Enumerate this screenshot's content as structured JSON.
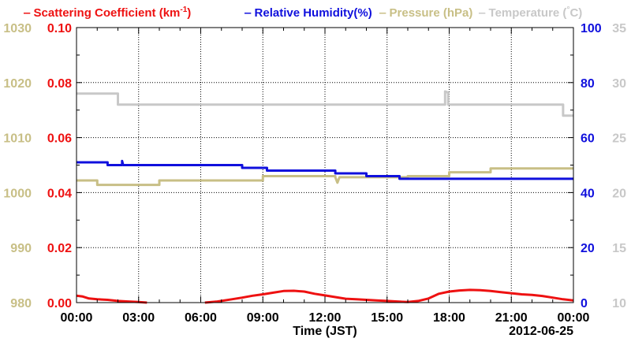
{
  "chart_data": {
    "type": "line",
    "legend": {
      "placement": "top",
      "entries": [
        {
          "text": "Scattering Coefficient (km",
          "sup": "-1",
          "after": ")",
          "color": "#ee1111"
        },
        {
          "text": "Relative Humidity(%)",
          "color": "#1010dd"
        },
        {
          "text": "Pressure (hPa)",
          "color": "#c8bf86"
        },
        {
          "text": "Temperature (",
          "sup": "°",
          "after": "C)",
          "color": "#c8c8c8"
        }
      ]
    },
    "xlabel": "Time (JST)",
    "date_label": "2012-06-25",
    "x_range": [
      0,
      24
    ],
    "x_ticks": [
      {
        "v": 0,
        "label": "00:00"
      },
      {
        "v": 3,
        "label": "03:00"
      },
      {
        "v": 6,
        "label": "06:00"
      },
      {
        "v": 9,
        "label": "09:00"
      },
      {
        "v": 12,
        "label": "12:00"
      },
      {
        "v": 15,
        "label": "15:00"
      },
      {
        "v": 18,
        "label": "18:00"
      },
      {
        "v": 21,
        "label": "21:00"
      },
      {
        "v": 24,
        "label": "00:00"
      }
    ],
    "grid": true,
    "axes": {
      "scattering": {
        "range": [
          0,
          0.1
        ],
        "ticks": [
          "0.00",
          "0.02",
          "0.04",
          "0.06",
          "0.08",
          "0.10"
        ],
        "color": "#ee1111",
        "side": "left-inner"
      },
      "pressure": {
        "range": [
          980,
          1030
        ],
        "ticks": [
          "980",
          "990",
          "1000",
          "1010",
          "1020",
          "1030"
        ],
        "color": "#c8bf86",
        "side": "left-outer"
      },
      "humidity": {
        "range": [
          0,
          100
        ],
        "ticks": [
          "0",
          "20",
          "40",
          "60",
          "80",
          "100"
        ],
        "color": "#1010dd",
        "side": "right-inner"
      },
      "temperature": {
        "range": [
          10,
          35
        ],
        "ticks": [
          "10",
          "15",
          "20",
          "25",
          "30",
          "35"
        ],
        "color": "#c8c8c8",
        "side": "right-outer"
      }
    },
    "series": [
      {
        "name": "Scattering Coefficient (km-1)",
        "axis": "scattering",
        "color": "#ee1111",
        "segments": [
          [
            [
              0,
              0.0025
            ],
            [
              0.3,
              0.0022
            ],
            [
              0.6,
              0.0015
            ],
            [
              1.0,
              0.0012
            ],
            [
              1.5,
              0.001
            ],
            [
              2.0,
              0.0006
            ],
            [
              2.5,
              0.0004
            ],
            [
              3.0,
              0.0002
            ],
            [
              3.4,
              0.0
            ]
          ],
          [
            [
              6.2,
              0.0
            ],
            [
              6.8,
              0.0004
            ],
            [
              7.5,
              0.0012
            ],
            [
              8.0,
              0.0018
            ],
            [
              8.5,
              0.0025
            ],
            [
              9.0,
              0.003
            ],
            [
              9.5,
              0.0036
            ],
            [
              10.0,
              0.0042
            ],
            [
              10.5,
              0.0043
            ],
            [
              11.0,
              0.004
            ],
            [
              11.5,
              0.0032
            ],
            [
              12.0,
              0.0026
            ],
            [
              12.5,
              0.002
            ],
            [
              13.0,
              0.0014
            ],
            [
              13.5,
              0.0012
            ],
            [
              14.0,
              0.001
            ],
            [
              14.5,
              0.0008
            ],
            [
              15.0,
              0.0006
            ],
            [
              15.5,
              0.0004
            ],
            [
              16.0,
              0.0002
            ],
            [
              16.5,
              0.0006
            ],
            [
              17.0,
              0.0015
            ],
            [
              17.5,
              0.0032
            ],
            [
              18.0,
              0.004
            ],
            [
              18.5,
              0.0044
            ],
            [
              19.0,
              0.0046
            ],
            [
              19.5,
              0.0045
            ],
            [
              20.0,
              0.0042
            ],
            [
              20.5,
              0.0038
            ],
            [
              21.0,
              0.0034
            ],
            [
              21.5,
              0.003
            ],
            [
              22.0,
              0.0028
            ],
            [
              22.5,
              0.0024
            ],
            [
              23.0,
              0.0018
            ],
            [
              23.5,
              0.0012
            ],
            [
              24.0,
              0.0008
            ]
          ]
        ]
      },
      {
        "name": "Relative Humidity(%)",
        "axis": "humidity",
        "color": "#1010dd",
        "segments": [
          [
            [
              0,
              51
            ],
            [
              1.5,
              51
            ],
            [
              1.5,
              50
            ],
            [
              2.2,
              50
            ],
            [
              2.2,
              51.5
            ],
            [
              2.25,
              50
            ],
            [
              8.0,
              50
            ],
            [
              8.0,
              49
            ],
            [
              9.2,
              49
            ],
            [
              9.2,
              48
            ],
            [
              12.5,
              48
            ],
            [
              12.5,
              47
            ],
            [
              14.0,
              47
            ],
            [
              14.0,
              46
            ],
            [
              15.6,
              46
            ],
            [
              15.6,
              45
            ],
            [
              24.0,
              45
            ]
          ]
        ]
      },
      {
        "name": "Pressure (hPa)",
        "axis": "pressure",
        "color": "#c8bf86",
        "segments": [
          [
            [
              0,
              1002.2
            ],
            [
              1.0,
              1002.2
            ],
            [
              1.0,
              1001.4
            ],
            [
              4.0,
              1001.4
            ],
            [
              4.0,
              1002.2
            ],
            [
              9.0,
              1002.2
            ],
            [
              9.0,
              1003.0
            ],
            [
              12.5,
              1003.0
            ],
            [
              12.5,
              1002.8
            ],
            [
              12.6,
              1001.8
            ],
            [
              12.7,
              1002.8
            ],
            [
              16.0,
              1002.8
            ],
            [
              16.0,
              1003.0
            ],
            [
              18.0,
              1003.0
            ],
            [
              18.0,
              1003.7
            ],
            [
              20.0,
              1003.7
            ],
            [
              20.0,
              1004.4
            ],
            [
              24.0,
              1004.4
            ]
          ]
        ]
      },
      {
        "name": "Temperature (C)",
        "axis": "temperature",
        "color": "#c8c8c8",
        "segments": [
          [
            [
              0,
              29.0
            ],
            [
              2.0,
              29.0
            ],
            [
              2.0,
              28.0
            ],
            [
              17.8,
              28.0
            ],
            [
              17.8,
              29.2
            ],
            [
              17.95,
              29.1
            ],
            [
              17.95,
              28.0
            ],
            [
              23.5,
              28.0
            ],
            [
              23.5,
              27.0
            ],
            [
              24.0,
              27.0
            ]
          ]
        ]
      }
    ]
  }
}
